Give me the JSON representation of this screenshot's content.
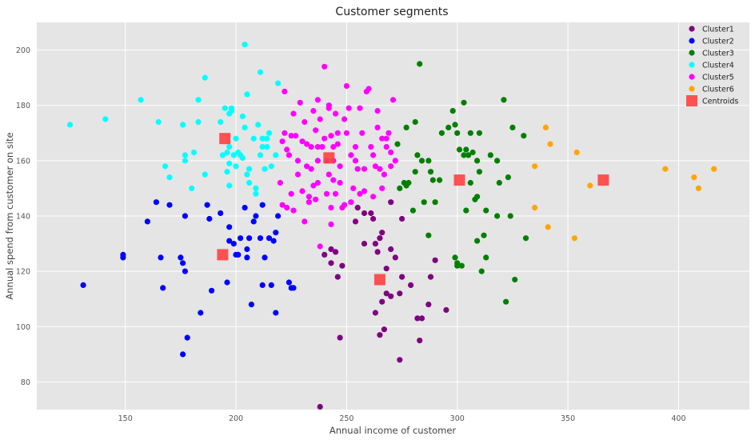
{
  "chart_data": {
    "type": "scatter",
    "title": "Customer segments",
    "xlabel": "Annual income of customer",
    "ylabel": "Annual spend from customer on site",
    "xlim": [
      110,
      432
    ],
    "ylim": [
      70,
      210
    ],
    "xticks": [
      150,
      200,
      250,
      300,
      350,
      400
    ],
    "yticks": [
      80,
      100,
      120,
      140,
      160,
      180,
      200
    ],
    "grid": true,
    "legend_position": "top-right",
    "series": [
      {
        "name": "Cluster1",
        "color": "#800080",
        "points": [
          [
            238,
            71
          ],
          [
            240,
            126
          ],
          [
            245,
            127
          ],
          [
            243,
            123
          ],
          [
            248,
            122
          ],
          [
            246,
            118
          ],
          [
            243,
            128
          ],
          [
            247,
            96
          ],
          [
            255,
            143
          ],
          [
            254,
            138
          ],
          [
            258,
            141
          ],
          [
            261,
            141
          ],
          [
            263,
            130
          ],
          [
            258,
            130
          ],
          [
            265,
            132
          ],
          [
            264,
            127
          ],
          [
            262,
            139
          ],
          [
            266,
            109
          ],
          [
            263,
            105
          ],
          [
            265,
            97
          ],
          [
            268,
            121
          ],
          [
            270,
            128
          ],
          [
            268,
            112
          ],
          [
            270,
            111
          ],
          [
            272,
            125
          ],
          [
            275,
            118
          ],
          [
            274,
            112
          ],
          [
            274,
            88
          ],
          [
            267,
            99
          ],
          [
            270,
            145
          ],
          [
            275,
            139
          ],
          [
            279,
            115
          ],
          [
            282,
            103
          ],
          [
            284,
            103
          ],
          [
            283,
            95
          ],
          [
            287,
            108
          ],
          [
            288,
            118
          ],
          [
            290,
            124
          ],
          [
            295,
            106
          ],
          [
            266,
            134
          ]
        ]
      },
      {
        "name": "Cluster2",
        "color": "#0000ff",
        "points": [
          [
            131,
            115
          ],
          [
            149,
            126
          ],
          [
            149,
            125
          ],
          [
            160,
            138
          ],
          [
            164,
            145
          ],
          [
            166,
            125
          ],
          [
            167,
            114
          ],
          [
            170,
            144
          ],
          [
            175,
            125
          ],
          [
            176,
            123
          ],
          [
            177,
            140
          ],
          [
            177,
            120
          ],
          [
            178,
            96
          ],
          [
            176,
            90
          ],
          [
            184,
            105
          ],
          [
            187,
            144
          ],
          [
            188,
            139
          ],
          [
            189,
            113
          ],
          [
            193,
            141
          ],
          [
            196,
            116
          ],
          [
            197,
            136
          ],
          [
            197,
            131
          ],
          [
            199,
            130
          ],
          [
            200,
            126
          ],
          [
            201,
            126
          ],
          [
            202,
            132
          ],
          [
            204,
            143
          ],
          [
            205,
            128
          ],
          [
            205,
            125
          ],
          [
            206,
            132
          ],
          [
            207,
            108
          ],
          [
            208,
            138
          ],
          [
            209,
            140
          ],
          [
            211,
            132
          ],
          [
            212,
            144
          ],
          [
            213,
            125
          ],
          [
            212,
            115
          ],
          [
            215,
            132
          ],
          [
            216,
            115
          ],
          [
            217,
            131
          ],
          [
            218,
            105
          ],
          [
            219,
            140
          ],
          [
            218,
            134
          ],
          [
            224,
            116
          ],
          [
            225,
            114
          ],
          [
            226,
            114
          ]
        ]
      },
      {
        "name": "Cluster3",
        "color": "#008000",
        "points": [
          [
            283,
            195
          ],
          [
            281,
            174
          ],
          [
            277,
            172
          ],
          [
            276,
            152
          ],
          [
            277,
            151
          ],
          [
            278,
            152
          ],
          [
            281,
            156
          ],
          [
            282,
            162
          ],
          [
            284,
            160
          ],
          [
            285,
            145
          ],
          [
            287,
            133
          ],
          [
            287,
            160
          ],
          [
            288,
            156
          ],
          [
            289,
            153
          ],
          [
            290,
            145
          ],
          [
            292,
            153
          ],
          [
            293,
            170
          ],
          [
            296,
            172
          ],
          [
            298,
            178
          ],
          [
            299,
            173
          ],
          [
            300,
            170
          ],
          [
            301,
            164
          ],
          [
            299,
            125
          ],
          [
            300,
            123
          ],
          [
            300,
            122
          ],
          [
            303,
            162
          ],
          [
            304,
            164
          ],
          [
            305,
            162
          ],
          [
            303,
            181
          ],
          [
            306,
            170
          ],
          [
            307,
            163
          ],
          [
            308,
            146
          ],
          [
            309,
            147
          ],
          [
            310,
            170
          ],
          [
            310,
            156
          ],
          [
            309,
            131
          ],
          [
            312,
            133
          ],
          [
            311,
            120
          ],
          [
            313,
            125
          ],
          [
            315,
            162
          ],
          [
            318,
            160
          ],
          [
            319,
            152
          ],
          [
            321,
            182
          ],
          [
            323,
            154
          ],
          [
            325,
            172
          ],
          [
            326,
            117
          ],
          [
            330,
            169
          ],
          [
            331,
            132
          ],
          [
            322,
            109
          ],
          [
            302,
            122
          ],
          [
            304,
            142
          ],
          [
            306,
            152
          ],
          [
            273,
            166
          ],
          [
            274,
            150
          ],
          [
            280,
            142
          ],
          [
            309,
            160
          ],
          [
            318,
            140
          ],
          [
            324,
            140
          ],
          [
            313,
            142
          ]
        ]
      },
      {
        "name": "Cluster4",
        "color": "#00ffff",
        "points": [
          [
            125,
            173
          ],
          [
            141,
            175
          ],
          [
            157,
            182
          ],
          [
            165,
            174
          ],
          [
            168,
            158
          ],
          [
            170,
            154
          ],
          [
            176,
            173
          ],
          [
            177,
            162
          ],
          [
            177,
            160
          ],
          [
            180,
            150
          ],
          [
            183,
            174
          ],
          [
            183,
            182
          ],
          [
            186,
            190
          ],
          [
            186,
            155
          ],
          [
            193,
            174
          ],
          [
            194,
            162
          ],
          [
            195,
            179
          ],
          [
            196,
            163
          ],
          [
            196,
            156
          ],
          [
            197,
            165
          ],
          [
            197,
            151
          ],
          [
            197,
            177
          ],
          [
            198,
            178
          ],
          [
            198,
            179
          ],
          [
            199,
            162
          ],
          [
            200,
            158
          ],
          [
            200,
            168
          ],
          [
            201,
            163
          ],
          [
            202,
            162
          ],
          [
            203,
            161
          ],
          [
            204,
            172
          ],
          [
            205,
            184
          ],
          [
            205,
            155
          ],
          [
            206,
            157
          ],
          [
            206,
            152
          ],
          [
            208,
            168
          ],
          [
            209,
            150
          ],
          [
            209,
            148
          ],
          [
            210,
            173
          ],
          [
            211,
            192
          ],
          [
            212,
            168
          ],
          [
            211,
            162
          ],
          [
            212,
            165
          ],
          [
            213,
            157
          ],
          [
            214,
            165
          ],
          [
            214,
            168
          ],
          [
            215,
            170
          ],
          [
            216,
            158
          ],
          [
            218,
            162
          ],
          [
            219,
            188
          ],
          [
            204,
            202
          ],
          [
            203,
            176
          ],
          [
            197,
            159
          ],
          [
            181,
            163
          ]
        ]
      },
      {
        "name": "Cluster5",
        "color": "#ff00ff",
        "points": [
          [
            220,
            152
          ],
          [
            221,
            144
          ],
          [
            221,
            167
          ],
          [
            222,
            170
          ],
          [
            222,
            185
          ],
          [
            223,
            164
          ],
          [
            223,
            143
          ],
          [
            224,
            162
          ],
          [
            225,
            169
          ],
          [
            225,
            148
          ],
          [
            226,
            177
          ],
          [
            226,
            142
          ],
          [
            227,
            169
          ],
          [
            228,
            160
          ],
          [
            228,
            155
          ],
          [
            230,
            167
          ],
          [
            230,
            149
          ],
          [
            231,
            138
          ],
          [
            232,
            166
          ],
          [
            232,
            158
          ],
          [
            233,
            147
          ],
          [
            234,
            165
          ],
          [
            234,
            157
          ],
          [
            235,
            178
          ],
          [
            235,
            151
          ],
          [
            236,
            171
          ],
          [
            237,
            165
          ],
          [
            237,
            160
          ],
          [
            237,
            152
          ],
          [
            238,
            175
          ],
          [
            238,
            129
          ],
          [
            239,
            165
          ],
          [
            240,
            194
          ],
          [
            240,
            168
          ],
          [
            241,
            160
          ],
          [
            241,
            148
          ],
          [
            242,
            180
          ],
          [
            242,
            155
          ],
          [
            243,
            143
          ],
          [
            243,
            137
          ],
          [
            244,
            165
          ],
          [
            244,
            160
          ],
          [
            244,
            153
          ],
          [
            245,
            177
          ],
          [
            246,
            170
          ],
          [
            247,
            158
          ],
          [
            247,
            152
          ],
          [
            248,
            143
          ],
          [
            249,
            144
          ],
          [
            250,
            187
          ],
          [
            250,
            170
          ],
          [
            251,
            179
          ],
          [
            252,
            162
          ],
          [
            253,
            150
          ],
          [
            254,
            165
          ],
          [
            255,
            157
          ],
          [
            256,
            148
          ],
          [
            257,
            170
          ],
          [
            258,
            157
          ],
          [
            259,
            185
          ],
          [
            260,
            186
          ],
          [
            261,
            165
          ],
          [
            262,
            162
          ],
          [
            263,
            158
          ],
          [
            264,
            178
          ],
          [
            265,
            157
          ],
          [
            266,
            150
          ],
          [
            267,
            155
          ],
          [
            268,
            168
          ],
          [
            269,
            170
          ],
          [
            270,
            158
          ],
          [
            270,
            163
          ],
          [
            271,
            182
          ],
          [
            272,
            160
          ],
          [
            246,
            166
          ],
          [
            252,
            145
          ],
          [
            262,
            147
          ],
          [
            264,
            172
          ],
          [
            268,
            165
          ],
          [
            229,
            181
          ],
          [
            256,
            179
          ],
          [
            236,
            146
          ],
          [
            254,
            160
          ],
          [
            243,
            169
          ],
          [
            231,
            174
          ],
          [
            237,
            182
          ],
          [
            242,
            179
          ],
          [
            245,
            148
          ],
          [
            233,
            145
          ],
          [
            258,
            149
          ],
          [
            266,
            168
          ],
          [
            249,
            175
          ]
        ]
      },
      {
        "name": "Cluster6",
        "color": "#ffa500",
        "points": [
          [
            335,
            158
          ],
          [
            335,
            143
          ],
          [
            340,
            172
          ],
          [
            341,
            136
          ],
          [
            342,
            166
          ],
          [
            353,
            132
          ],
          [
            354,
            163
          ],
          [
            360,
            151
          ],
          [
            394,
            157
          ],
          [
            407,
            154
          ],
          [
            409,
            150
          ],
          [
            416,
            157
          ]
        ]
      }
    ],
    "centroids": {
      "name": "Centroids",
      "color": "#ff4040",
      "points": [
        [
          195,
          168
        ],
        [
          194,
          126
        ],
        [
          242,
          161
        ],
        [
          265,
          117
        ],
        [
          301,
          153
        ],
        [
          366,
          153
        ]
      ]
    }
  }
}
